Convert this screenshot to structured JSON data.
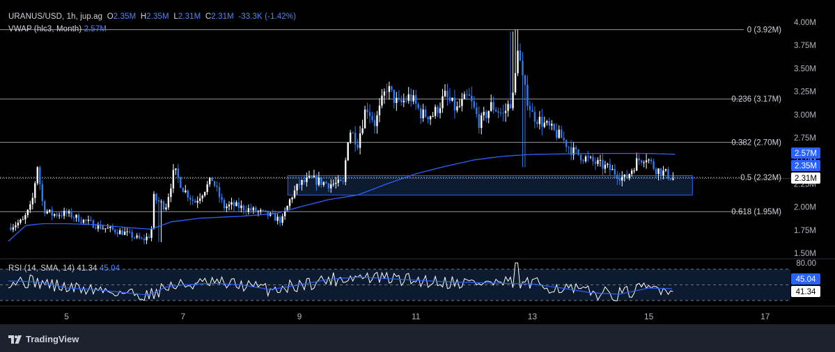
{
  "legend": {
    "symbol": "URANUS/USD, 1h, jup.ag",
    "o_label": "O",
    "o_value": "2.35M",
    "h_label": "H",
    "h_value": "2.35M",
    "l_label": "L",
    "l_value": "2.31M",
    "c_label": "C",
    "c_value": "2.31M",
    "change": "-33.3K (-1.42%)",
    "vwap_label": "VWAP (hlc3, Month)",
    "vwap_value": "2.57M",
    "rsi_label": "RSI (14, SMA, 14)",
    "rsi_value": "41.34",
    "rsi_sma_value": "45.04"
  },
  "branding": "TradingView",
  "colors": {
    "background": "#000000",
    "candle_up": "#ffffff",
    "candle_down": "#2e7bf0",
    "vwap": "#2962ff",
    "rsi_line": "#ffffff",
    "rsi_sma": "#2962ff",
    "fib": "#b2b5be",
    "box_fill": "#0d1b30",
    "box_stroke": "#2962ff",
    "price_badge": "#2962ff"
  },
  "chart_data": {
    "type": "candlestick",
    "x_ticks": [
      "5",
      "7",
      "9",
      "11",
      "13",
      "15",
      "17"
    ],
    "y_ticks": [
      "4.00M",
      "3.75M",
      "3.50M",
      "3.25M",
      "3.00M",
      "2.75M",
      "2.50M",
      "2.25M",
      "2.00M",
      "1.75M",
      "1.50M"
    ],
    "ylim": [
      1.5,
      4.0
    ],
    "x_range_days": [
      4.0,
      17.0
    ],
    "fib_levels": [
      {
        "label": "0 (3.92M)",
        "value": 3.92
      },
      {
        "label": "0.236 (3.17M)",
        "value": 3.17
      },
      {
        "label": "0.382 (2.70M)",
        "value": 2.7
      },
      {
        "label": "0.5 (2.32M)",
        "value": 2.32
      },
      {
        "label": "0.618 (1.95M)",
        "value": 1.95
      }
    ],
    "zone": {
      "x_start": 8.8,
      "x_end": 15.75,
      "y_low": 2.13,
      "y_high": 2.34
    },
    "last_price": 2.31,
    "price_badges": [
      {
        "label": "2.57M",
        "value": 2.57,
        "kind": "vwap"
      },
      {
        "label": "2.35M",
        "value": 2.35,
        "kind": "open"
      },
      {
        "label": "2.31M",
        "value": 2.31,
        "kind": "last"
      }
    ],
    "close_path": [
      [
        4.0,
        1.78
      ],
      [
        4.25,
        1.85
      ],
      [
        4.4,
        2.02
      ],
      [
        4.5,
        2.45
      ],
      [
        4.6,
        1.98
      ],
      [
        4.75,
        1.92
      ],
      [
        5.0,
        1.93
      ],
      [
        5.3,
        1.85
      ],
      [
        5.6,
        1.78
      ],
      [
        6.0,
        1.72
      ],
      [
        6.3,
        1.64
      ],
      [
        6.45,
        1.7
      ],
      [
        6.5,
        2.1
      ],
      [
        6.7,
        2.0
      ],
      [
        6.85,
        2.4
      ],
      [
        7.0,
        2.2
      ],
      [
        7.2,
        2.05
      ],
      [
        7.5,
        2.3
      ],
      [
        7.7,
        2.0
      ],
      [
        7.85,
        2.02
      ],
      [
        8.1,
        1.98
      ],
      [
        8.4,
        1.93
      ],
      [
        8.7,
        1.85
      ],
      [
        8.85,
        2.1
      ],
      [
        9.0,
        2.25
      ],
      [
        9.2,
        2.3
      ],
      [
        9.5,
        2.25
      ],
      [
        9.75,
        2.25
      ],
      [
        9.85,
        2.85
      ],
      [
        10.0,
        2.7
      ],
      [
        10.15,
        3.1
      ],
      [
        10.3,
        2.9
      ],
      [
        10.5,
        3.3
      ],
      [
        10.7,
        3.1
      ],
      [
        10.9,
        3.2
      ],
      [
        11.1,
        3.0
      ],
      [
        11.3,
        3.0
      ],
      [
        11.5,
        3.2
      ],
      [
        11.7,
        3.05
      ],
      [
        11.9,
        3.2
      ],
      [
        12.1,
        2.9
      ],
      [
        12.3,
        3.1
      ],
      [
        12.5,
        3.0
      ],
      [
        12.68,
        3.2
      ],
      [
        12.75,
        3.75
      ],
      [
        12.85,
        3.3
      ],
      [
        13.0,
        3.0
      ],
      [
        13.2,
        2.9
      ],
      [
        13.5,
        2.75
      ],
      [
        13.7,
        2.6
      ],
      [
        14.0,
        2.5
      ],
      [
        14.3,
        2.42
      ],
      [
        14.6,
        2.3
      ],
      [
        14.8,
        2.5
      ],
      [
        14.95,
        2.55
      ],
      [
        15.1,
        2.42
      ],
      [
        15.3,
        2.36
      ],
      [
        15.42,
        2.31
      ]
    ],
    "vwap_path": [
      [
        4.0,
        1.63
      ],
      [
        4.3,
        1.8
      ],
      [
        4.6,
        1.82
      ],
      [
        5.0,
        1.82
      ],
      [
        5.5,
        1.81
      ],
      [
        6.0,
        1.78
      ],
      [
        6.45,
        1.76
      ],
      [
        6.8,
        1.84
      ],
      [
        7.3,
        1.88
      ],
      [
        8.0,
        1.9
      ],
      [
        8.6,
        1.93
      ],
      [
        9.0,
        2.0
      ],
      [
        9.5,
        2.08
      ],
      [
        10.0,
        2.13
      ],
      [
        10.5,
        2.25
      ],
      [
        11.0,
        2.36
      ],
      [
        11.5,
        2.44
      ],
      [
        12.0,
        2.51
      ],
      [
        12.5,
        2.55
      ],
      [
        13.0,
        2.57
      ],
      [
        14.0,
        2.58
      ],
      [
        15.0,
        2.58
      ],
      [
        15.5,
        2.57
      ]
    ],
    "rsi": {
      "upper_band": 70,
      "mid_band": 50,
      "lower_band": 30,
      "y_tick": "80.00",
      "value": 41.34,
      "sma_value": 45.04,
      "fill": "#0d1b30",
      "sma_path": [
        [
          4.0,
          55
        ],
        [
          4.5,
          54
        ],
        [
          5.0,
          46
        ],
        [
          5.5,
          44
        ],
        [
          6.0,
          40
        ],
        [
          6.4,
          37
        ],
        [
          6.7,
          47
        ],
        [
          7.0,
          50
        ],
        [
          7.5,
          52
        ],
        [
          8.0,
          50
        ],
        [
          8.5,
          44
        ],
        [
          9.0,
          50
        ],
        [
          9.5,
          57
        ],
        [
          10.0,
          60
        ],
        [
          10.5,
          58
        ],
        [
          11.0,
          56
        ],
        [
          11.5,
          54
        ],
        [
          12.0,
          53
        ],
        [
          12.5,
          52
        ],
        [
          13.0,
          51
        ],
        [
          13.5,
          46
        ],
        [
          14.0,
          40
        ],
        [
          14.5,
          38
        ],
        [
          15.0,
          46
        ],
        [
          15.42,
          45
        ]
      ]
    }
  }
}
